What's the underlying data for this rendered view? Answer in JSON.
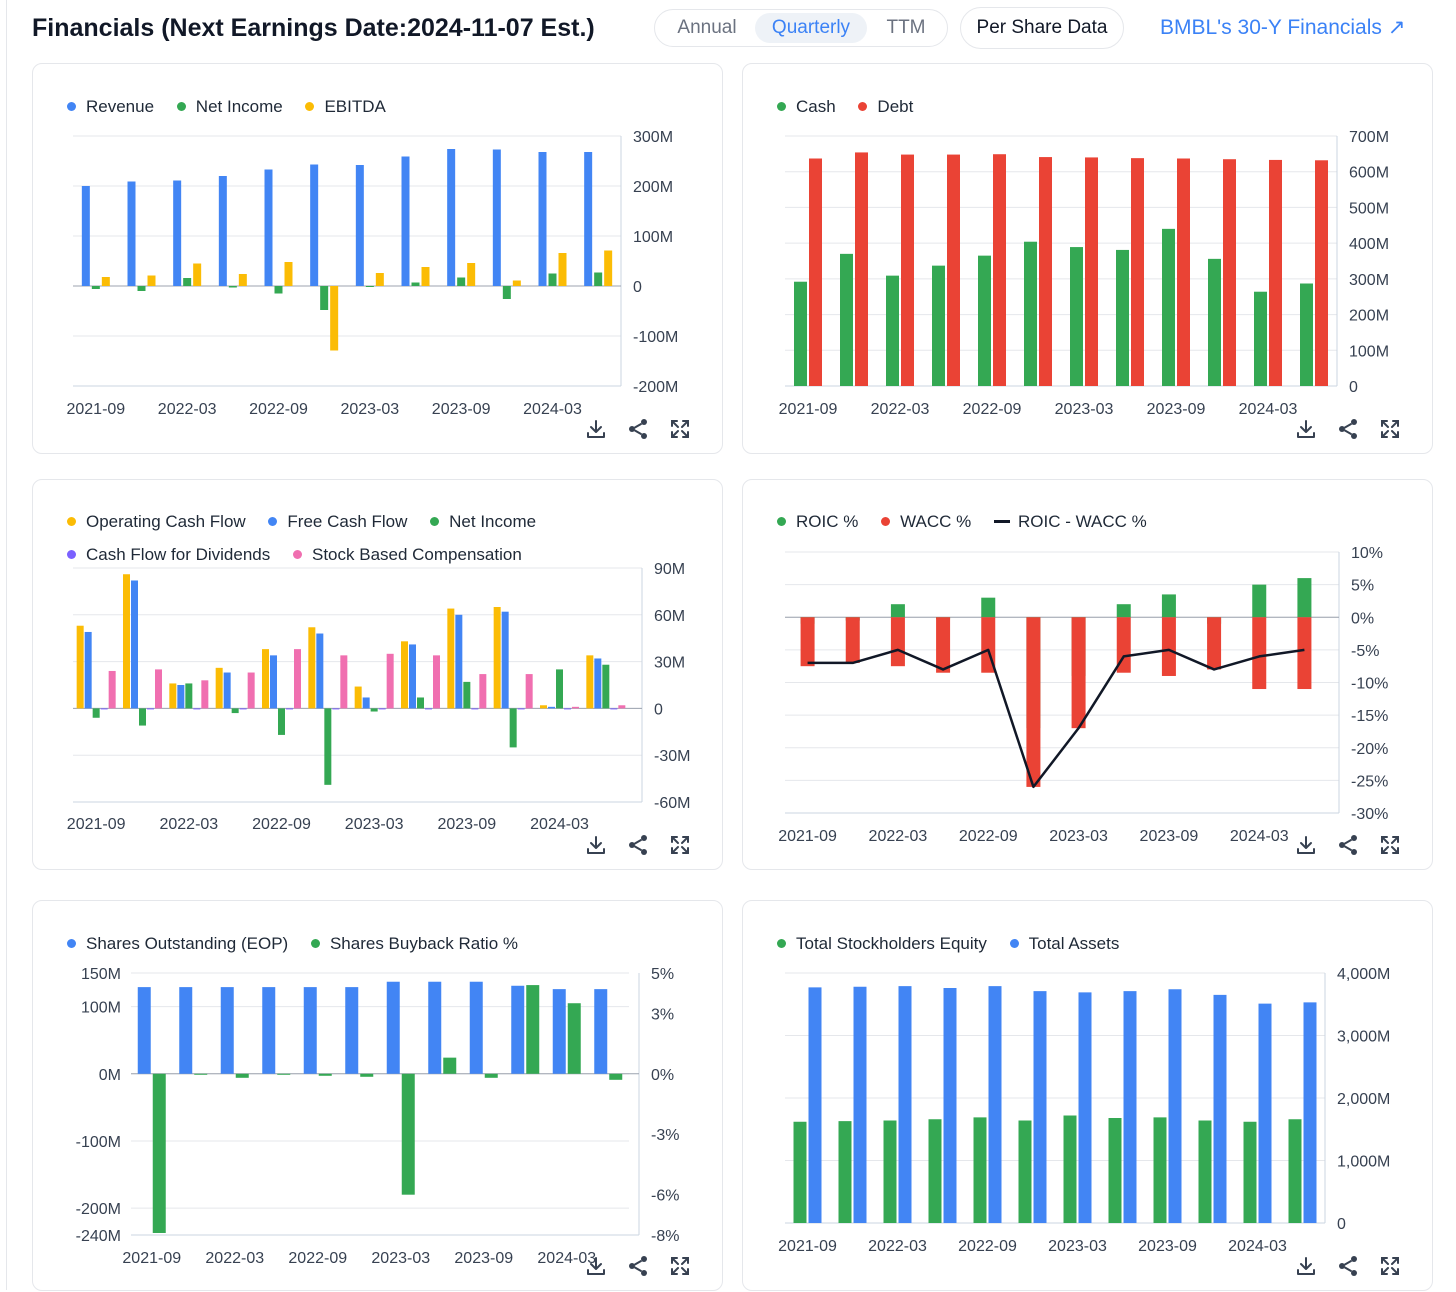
{
  "header": {
    "title": "Financials (Next Earnings Date:2024-11-07 Est.)",
    "period_tabs": [
      {
        "label": "Annual",
        "active": false
      },
      {
        "label": "Quarterly",
        "active": true
      },
      {
        "label": "TTM",
        "active": false
      }
    ],
    "per_share_label": "Per Share Data",
    "long_term_link": "BMBL's 30-Y Financials",
    "link_arrow": "↗"
  },
  "toolbar_icons": [
    "download-icon",
    "share-icon",
    "expand-icon"
  ],
  "colors": {
    "blue": "#4285f4",
    "green": "#34a853",
    "yellow": "#fbbc05",
    "red": "#ea4335",
    "purple": "#7b61ff",
    "pink": "#f06fb0",
    "line": "#111827"
  },
  "chart_data": [
    {
      "type": "bar",
      "categories": [
        "2021-09",
        "2021-12",
        "2022-03",
        "2022-06",
        "2022-09",
        "2022-12",
        "2023-03",
        "2023-06",
        "2023-09",
        "2023-12",
        "2024-03",
        "2024-06"
      ],
      "x_tick_labels": [
        "2021-09",
        "2022-03",
        "2022-09",
        "2023-03",
        "2023-09",
        "2024-03"
      ],
      "series": [
        {
          "name": "Revenue",
          "color": "#4285f4",
          "values": [
            200,
            209,
            211,
            220,
            233,
            243,
            242,
            259,
            274,
            273,
            268,
            268
          ]
        },
        {
          "name": "Net Income",
          "color": "#34a853",
          "values": [
            -6,
            -10,
            16,
            -3,
            -15,
            -48,
            -2,
            7,
            17,
            -26,
            25,
            27
          ]
        },
        {
          "name": "EBITDA",
          "color": "#fbbc05",
          "values": [
            18,
            21,
            45,
            24,
            48,
            -129,
            26,
            38,
            46,
            11,
            66,
            71
          ]
        }
      ],
      "y_tick_labels": [
        "300M",
        "200M",
        "100M",
        "0",
        "-100M",
        "-200M"
      ],
      "ylim": [
        -200,
        300
      ],
      "y_unit": "M",
      "grid": true,
      "legend": "top-left"
    },
    {
      "type": "bar",
      "categories": [
        "2021-09",
        "2021-12",
        "2022-03",
        "2022-06",
        "2022-09",
        "2022-12",
        "2023-03",
        "2023-06",
        "2023-09",
        "2023-12",
        "2024-03",
        "2024-06"
      ],
      "x_tick_labels": [
        "2021-09",
        "2022-03",
        "2022-09",
        "2023-03",
        "2023-09",
        "2024-03"
      ],
      "series": [
        {
          "name": "Cash",
          "color": "#34a853",
          "values": [
            292,
            370,
            309,
            337,
            365,
            404,
            389,
            381,
            440,
            356,
            264,
            287
          ]
        },
        {
          "name": "Debt",
          "color": "#ea4335",
          "values": [
            637,
            654,
            648,
            648,
            649,
            641,
            640,
            638,
            637,
            635,
            633,
            632
          ]
        }
      ],
      "y_tick_labels": [
        "700M",
        "600M",
        "500M",
        "400M",
        "300M",
        "200M",
        "100M",
        "0"
      ],
      "ylim": [
        0,
        700
      ],
      "y_unit": "M",
      "grid": true,
      "legend": "top-left"
    },
    {
      "type": "bar",
      "categories": [
        "2021-09",
        "2021-12",
        "2022-03",
        "2022-06",
        "2022-09",
        "2022-12",
        "2023-03",
        "2023-06",
        "2023-09",
        "2023-12",
        "2024-03",
        "2024-06"
      ],
      "x_tick_labels": [
        "2021-09",
        "2022-03",
        "2022-09",
        "2023-03",
        "2023-09",
        "2024-03"
      ],
      "series": [
        {
          "name": "Operating Cash Flow",
          "color": "#fbbc05",
          "values": [
            53,
            86,
            16,
            26,
            38,
            52,
            14,
            43,
            64,
            65,
            2,
            34
          ]
        },
        {
          "name": "Free Cash Flow",
          "color": "#4285f4",
          "values": [
            49,
            82,
            15,
            23,
            34,
            48,
            7,
            41,
            60,
            62,
            1,
            32
          ]
        },
        {
          "name": "Net Income",
          "color": "#34a853",
          "values": [
            -6,
            -11,
            16,
            -3,
            -17,
            -49,
            -2,
            7,
            17,
            -25,
            25,
            28
          ]
        },
        {
          "name": "Cash Flow for Dividends",
          "color": "#7b61ff",
          "values": [
            0,
            0,
            0,
            0,
            0,
            0,
            0,
            0,
            0,
            0,
            0,
            0
          ]
        },
        {
          "name": "Stock Based Compensation",
          "color": "#f06fb0",
          "values": [
            24,
            25,
            18,
            23,
            38,
            34,
            35,
            34,
            22,
            22,
            1,
            2
          ]
        }
      ],
      "y_tick_labels": [
        "90M",
        "60M",
        "30M",
        "0",
        "-30M",
        "-60M"
      ],
      "ylim": [
        -60,
        90
      ],
      "y_unit": "M",
      "grid": true,
      "legend": "top-left"
    },
    {
      "type": "bar",
      "categories": [
        "2021-09",
        "2021-12",
        "2022-03",
        "2022-06",
        "2022-09",
        "2022-12",
        "2023-03",
        "2023-06",
        "2023-09",
        "2023-12",
        "2024-03",
        "2024-06"
      ],
      "x_tick_labels": [
        "2021-09",
        "2022-03",
        "2022-09",
        "2023-03",
        "2023-09",
        "2024-03"
      ],
      "series": [
        {
          "name": "ROIC %",
          "color": "#34a853",
          "kind": "bar",
          "values": [
            -1,
            -0.5,
            2,
            -0.3,
            3,
            -17,
            -9,
            2,
            3.5,
            -1,
            5,
            6
          ]
        },
        {
          "name": "WACC %",
          "color": "#ea4335",
          "kind": "bar",
          "values": [
            -7.5,
            -7,
            -7.5,
            -8.5,
            -8.5,
            -26,
            -17,
            -8.5,
            -9,
            -8,
            -11,
            -11
          ]
        },
        {
          "name": "ROIC - WACC %",
          "color": "#111827",
          "kind": "line",
          "values": [
            -7,
            -7,
            -5,
            -8,
            -5,
            -26,
            -17,
            -6,
            -5,
            -8,
            -6,
            -5
          ]
        }
      ],
      "y_tick_labels": [
        "10%",
        "5%",
        "0%",
        "-5%",
        "-10%",
        "-15%",
        "-20%",
        "-25%",
        "-30%"
      ],
      "ylim": [
        -30,
        10
      ],
      "y_unit": "%",
      "grid": true,
      "legend": "top-left"
    },
    {
      "type": "bar",
      "categories": [
        "2021-09",
        "2021-12",
        "2022-03",
        "2022-06",
        "2022-09",
        "2022-12",
        "2023-03",
        "2023-06",
        "2023-09",
        "2023-12",
        "2024-03",
        "2024-06"
      ],
      "x_tick_labels": [
        "2021-09",
        "2022-03",
        "2022-09",
        "2023-03",
        "2023-09",
        "2024-03"
      ],
      "series": [
        {
          "name": "Shares Outstanding (EOP)",
          "color": "#4285f4",
          "axis": "left",
          "values": [
            129,
            129,
            129,
            129,
            129,
            129,
            137,
            137,
            137,
            131,
            126,
            126
          ]
        },
        {
          "name": "Shares Buyback Ratio %",
          "color": "#34a853",
          "axis": "right",
          "values": [
            -7.9,
            0,
            -0.2,
            -0.05,
            -0.1,
            -0.15,
            -6,
            0.8,
            -0.2,
            4.4,
            3.5,
            -0.3
          ]
        }
      ],
      "y_tick_labels": [
        "150M",
        "100M",
        "0M",
        "-100M",
        "-200M",
        "-240M"
      ],
      "ylim": [
        -240,
        150
      ],
      "y_unit": "M",
      "y2_tick_labels": [
        "5%",
        "3%",
        "0%",
        "-3%",
        "-6%",
        "-8%"
      ],
      "y2lim": [
        -8,
        5
      ],
      "grid": true,
      "legend": "top-left"
    },
    {
      "type": "bar",
      "categories": [
        "2021-09",
        "2021-12",
        "2022-03",
        "2022-06",
        "2022-09",
        "2022-12",
        "2023-03",
        "2023-06",
        "2023-09",
        "2023-12",
        "2024-03",
        "2024-06"
      ],
      "x_tick_labels": [
        "2021-09",
        "2022-03",
        "2022-09",
        "2023-03",
        "2023-09",
        "2024-03"
      ],
      "series": [
        {
          "name": "Total Stockholders Equity",
          "color": "#34a853",
          "values": [
            1620,
            1630,
            1640,
            1660,
            1690,
            1640,
            1720,
            1680,
            1690,
            1640,
            1620,
            1660
          ]
        },
        {
          "name": "Total Assets",
          "color": "#4285f4",
          "values": [
            3770,
            3780,
            3790,
            3760,
            3790,
            3710,
            3690,
            3710,
            3740,
            3650,
            3510,
            3530
          ]
        }
      ],
      "y_tick_labels": [
        "4,000M",
        "3,000M",
        "2,000M",
        "1,000M",
        "0"
      ],
      "ylim": [
        0,
        4000
      ],
      "y_unit": "M",
      "grid": true,
      "legend": "top-left"
    }
  ]
}
